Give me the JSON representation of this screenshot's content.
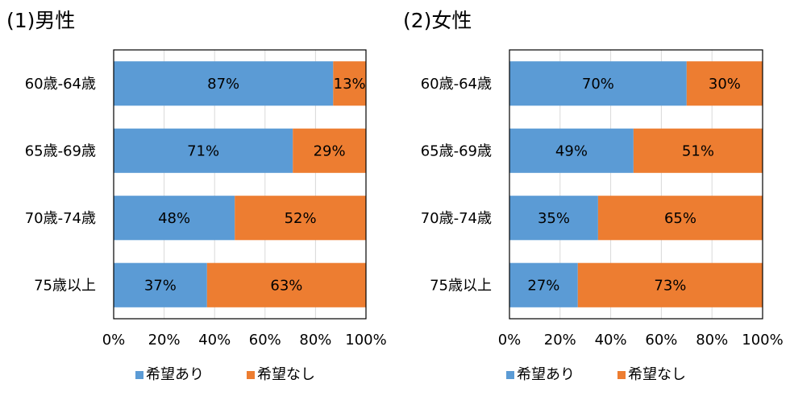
{
  "colors": {
    "yes": "#5B9BD5",
    "no": "#ED7D31",
    "grid": "#D9D9D9",
    "frame": "#000000"
  },
  "chart_data": [
    {
      "type": "bar",
      "orientation": "horizontal",
      "stacked": "percent",
      "title": "(1)男性",
      "categories": [
        "60歳-64歳",
        "65歳-69歳",
        "70歳-74歳",
        "75歳以上"
      ],
      "series": [
        {
          "name": "希望あり",
          "values": [
            87,
            71,
            48,
            37
          ]
        },
        {
          "name": "希望なし",
          "values": [
            13,
            29,
            52,
            63
          ]
        }
      ],
      "value_labels": [
        [
          "87%",
          "71%",
          "48%",
          "37%"
        ],
        [
          "13%",
          "29%",
          "52%",
          "63%"
        ]
      ],
      "xlim": [
        0,
        100
      ],
      "xticks": [
        "0%",
        "20%",
        "40%",
        "60%",
        "80%",
        "100%"
      ],
      "grid": true,
      "legend": "bottom"
    },
    {
      "type": "bar",
      "orientation": "horizontal",
      "stacked": "percent",
      "title": "(2)女性",
      "categories": [
        "60歳-64歳",
        "65歳-69歳",
        "70歳-74歳",
        "75歳以上"
      ],
      "series": [
        {
          "name": "希望あり",
          "values": [
            70,
            49,
            35,
            27
          ]
        },
        {
          "name": "希望なし",
          "values": [
            30,
            51,
            65,
            73
          ]
        }
      ],
      "value_labels": [
        [
          "70%",
          "49%",
          "35%",
          "27%"
        ],
        [
          "30%",
          "51%",
          "65%",
          "73%"
        ]
      ],
      "xlim": [
        0,
        100
      ],
      "xticks": [
        "0%",
        "20%",
        "40%",
        "60%",
        "80%",
        "100%"
      ],
      "grid": true,
      "legend": "bottom"
    }
  ]
}
